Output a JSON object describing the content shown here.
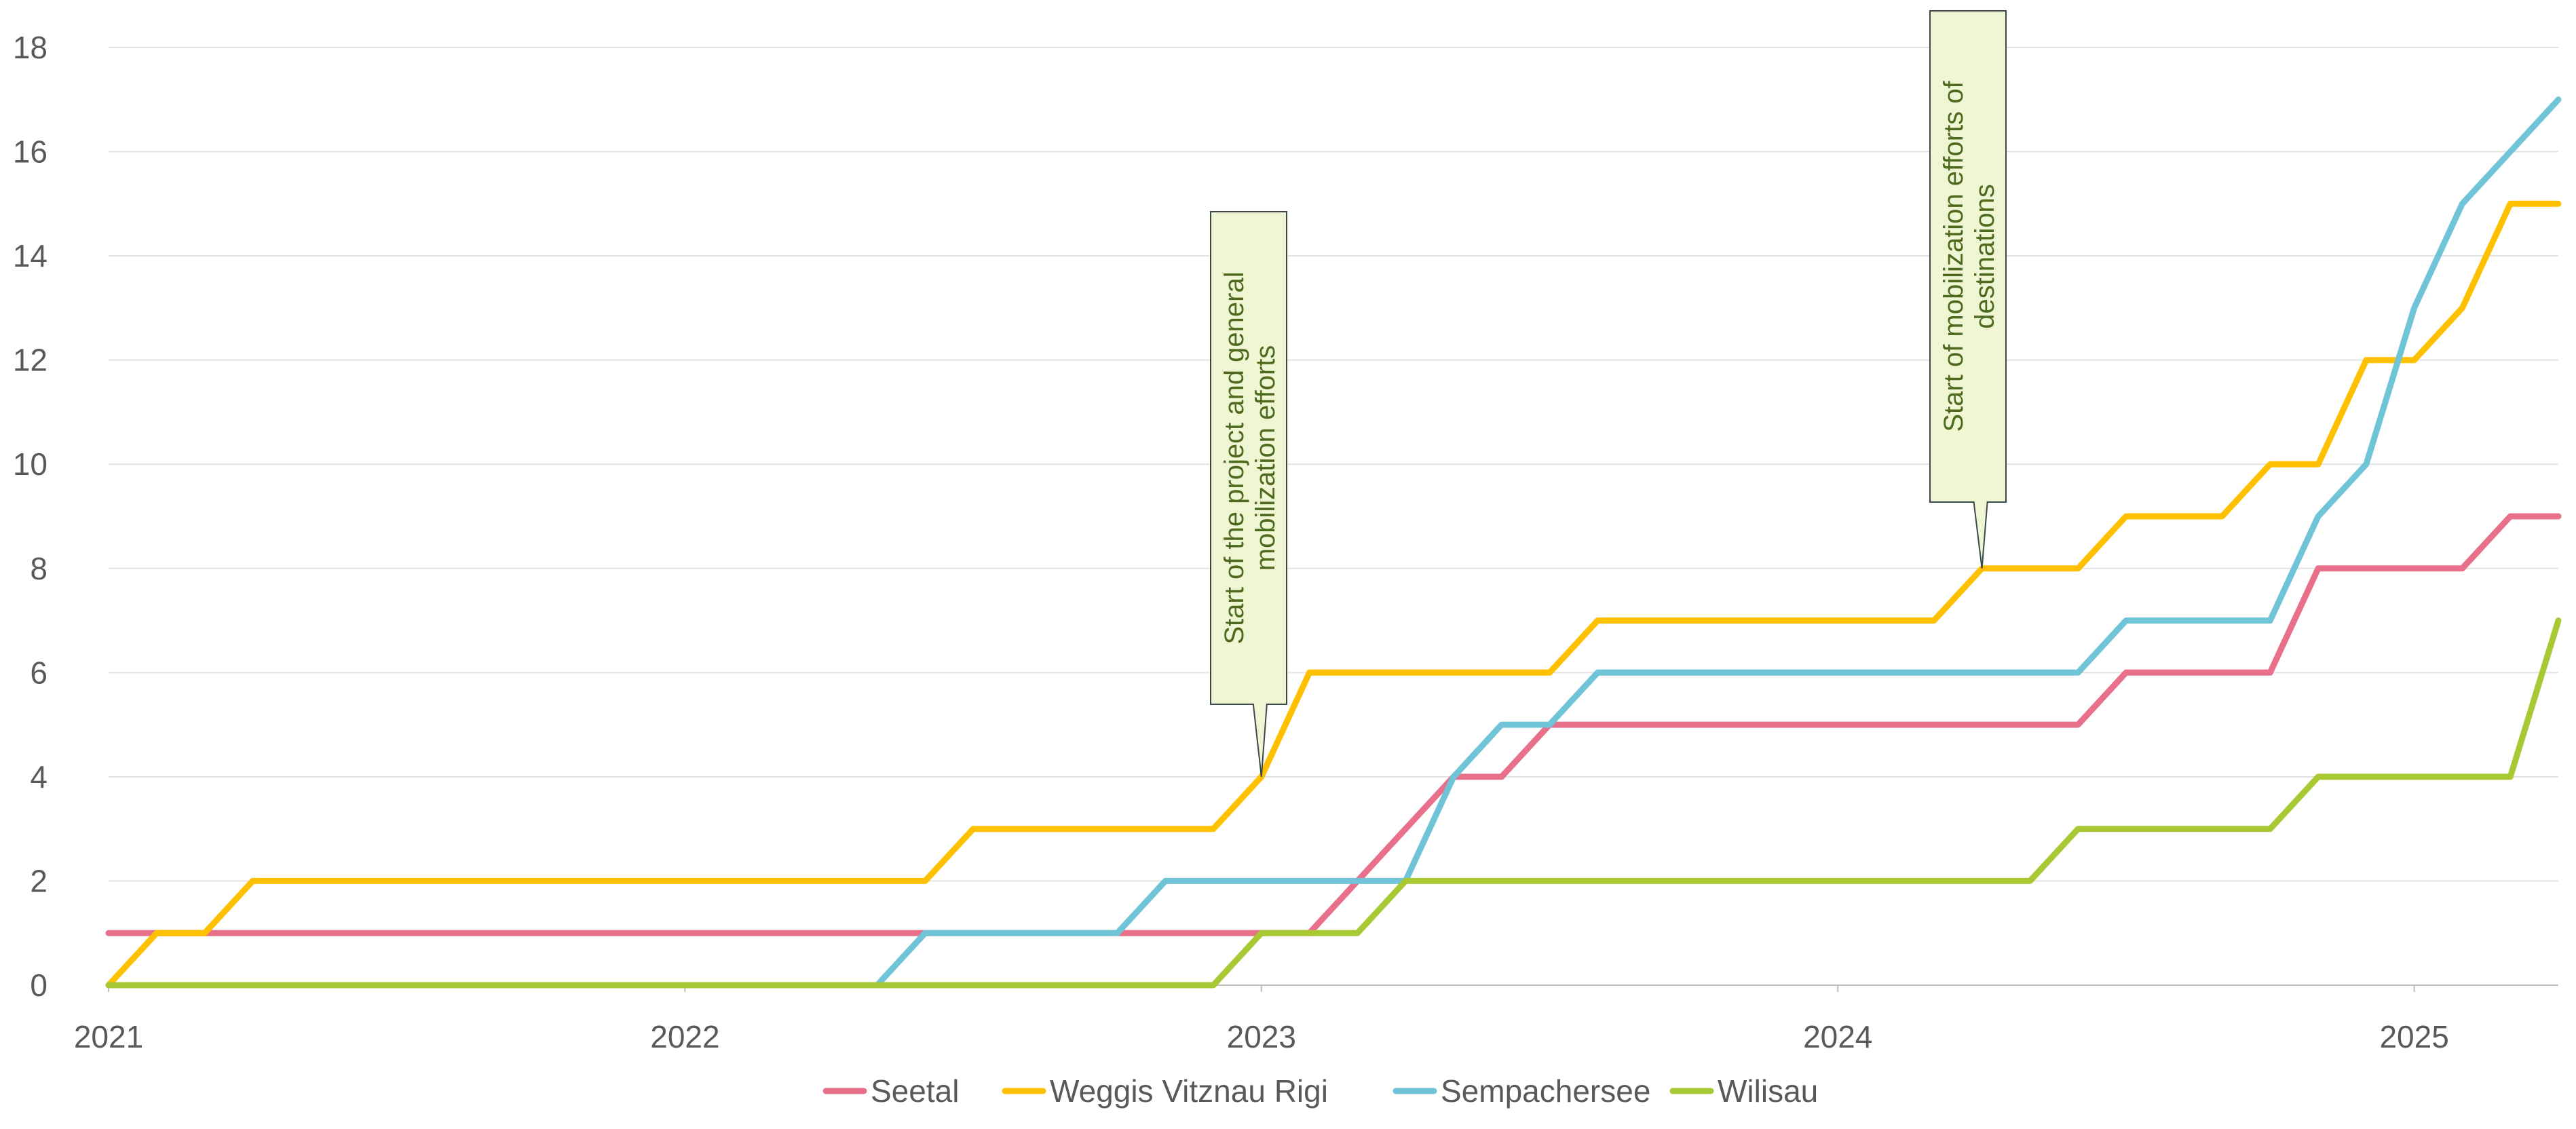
{
  "chart_data": {
    "type": "line",
    "title": "",
    "xlabel": "",
    "ylabel": "",
    "x_axis": {
      "type": "date",
      "range": [
        "2021-01",
        "2025-04"
      ],
      "tick_labels": [
        "2021",
        "2022",
        "2023",
        "2024",
        "2025"
      ]
    },
    "y_axis": {
      "range": [
        0,
        18
      ],
      "tick_labels": [
        "0",
        "2",
        "4",
        "6",
        "8",
        "10",
        "12",
        "14",
        "16",
        "18"
      ]
    },
    "grid": "horizontal",
    "legend_position": "bottom",
    "series": [
      {
        "name": "Seetal",
        "color": "#e8708a",
        "points": [
          [
            "2021-01",
            1
          ],
          [
            "2023-01",
            1
          ],
          [
            "2023-02",
            1
          ],
          [
            "2023-05",
            4
          ],
          [
            "2023-06",
            4
          ],
          [
            "2023-07",
            5
          ],
          [
            "2024-06",
            5
          ],
          [
            "2024-07",
            6
          ],
          [
            "2024-10",
            6
          ],
          [
            "2024-11",
            8
          ],
          [
            "2025-02",
            8
          ],
          [
            "2025-03",
            9
          ],
          [
            "2025-04",
            9
          ]
        ]
      },
      {
        "name": "Weggis Vitznau Rigi",
        "color": "#ffc000",
        "points": [
          [
            "2021-01",
            0
          ],
          [
            "2021-02",
            1
          ],
          [
            "2021-03",
            1
          ],
          [
            "2021-04",
            2
          ],
          [
            "2022-06",
            2
          ],
          [
            "2022-07",
            3
          ],
          [
            "2022-12",
            3
          ],
          [
            "2023-01",
            4
          ],
          [
            "2023-02",
            6
          ],
          [
            "2023-07",
            6
          ],
          [
            "2023-08",
            7
          ],
          [
            "2024-03",
            7
          ],
          [
            "2024-04",
            8
          ],
          [
            "2024-06",
            8
          ],
          [
            "2024-07",
            9
          ],
          [
            "2024-09",
            9
          ],
          [
            "2024-10",
            10
          ],
          [
            "2024-11",
            10
          ],
          [
            "2024-12",
            12
          ],
          [
            "2025-01",
            12
          ],
          [
            "2025-02",
            13
          ],
          [
            "2025-03",
            15
          ],
          [
            "2025-04",
            15
          ]
        ]
      },
      {
        "name": "Sempachersee",
        "color": "#70c4d8",
        "points": [
          [
            "2021-01",
            0
          ],
          [
            "2022-05",
            0
          ],
          [
            "2022-06",
            1
          ],
          [
            "2022-10",
            1
          ],
          [
            "2022-11",
            2
          ],
          [
            "2023-04",
            2
          ],
          [
            "2023-05",
            4
          ],
          [
            "2023-06",
            5
          ],
          [
            "2023-07",
            5
          ],
          [
            "2023-08",
            6
          ],
          [
            "2024-06",
            6
          ],
          [
            "2024-07",
            7
          ],
          [
            "2024-10",
            7
          ],
          [
            "2024-11",
            9
          ],
          [
            "2024-12",
            10
          ],
          [
            "2025-01",
            13
          ],
          [
            "2025-02",
            15
          ],
          [
            "2025-04",
            17
          ]
        ]
      },
      {
        "name": "Wilisau",
        "color": "#a9c934",
        "points": [
          [
            "2021-01",
            0
          ],
          [
            "2022-12",
            0
          ],
          [
            "2023-01",
            1
          ],
          [
            "2023-03",
            1
          ],
          [
            "2023-04",
            2
          ],
          [
            "2024-05",
            2
          ],
          [
            "2024-06",
            3
          ],
          [
            "2024-10",
            3
          ],
          [
            "2024-11",
            4
          ],
          [
            "2025-03",
            4
          ],
          [
            "2025-04",
            7
          ]
        ]
      }
    ],
    "annotations": [
      {
        "text_lines": [
          "Start of the project and general",
          "mobilization efforts"
        ],
        "series": "Weggis Vitznau Rigi",
        "x": "2023-01",
        "y": 4
      },
      {
        "text_lines": [
          "Start of mobilization efforts of",
          "destinations"
        ],
        "series": "Weggis Vitznau Rigi",
        "x": "2024-04",
        "y": 8
      }
    ]
  }
}
